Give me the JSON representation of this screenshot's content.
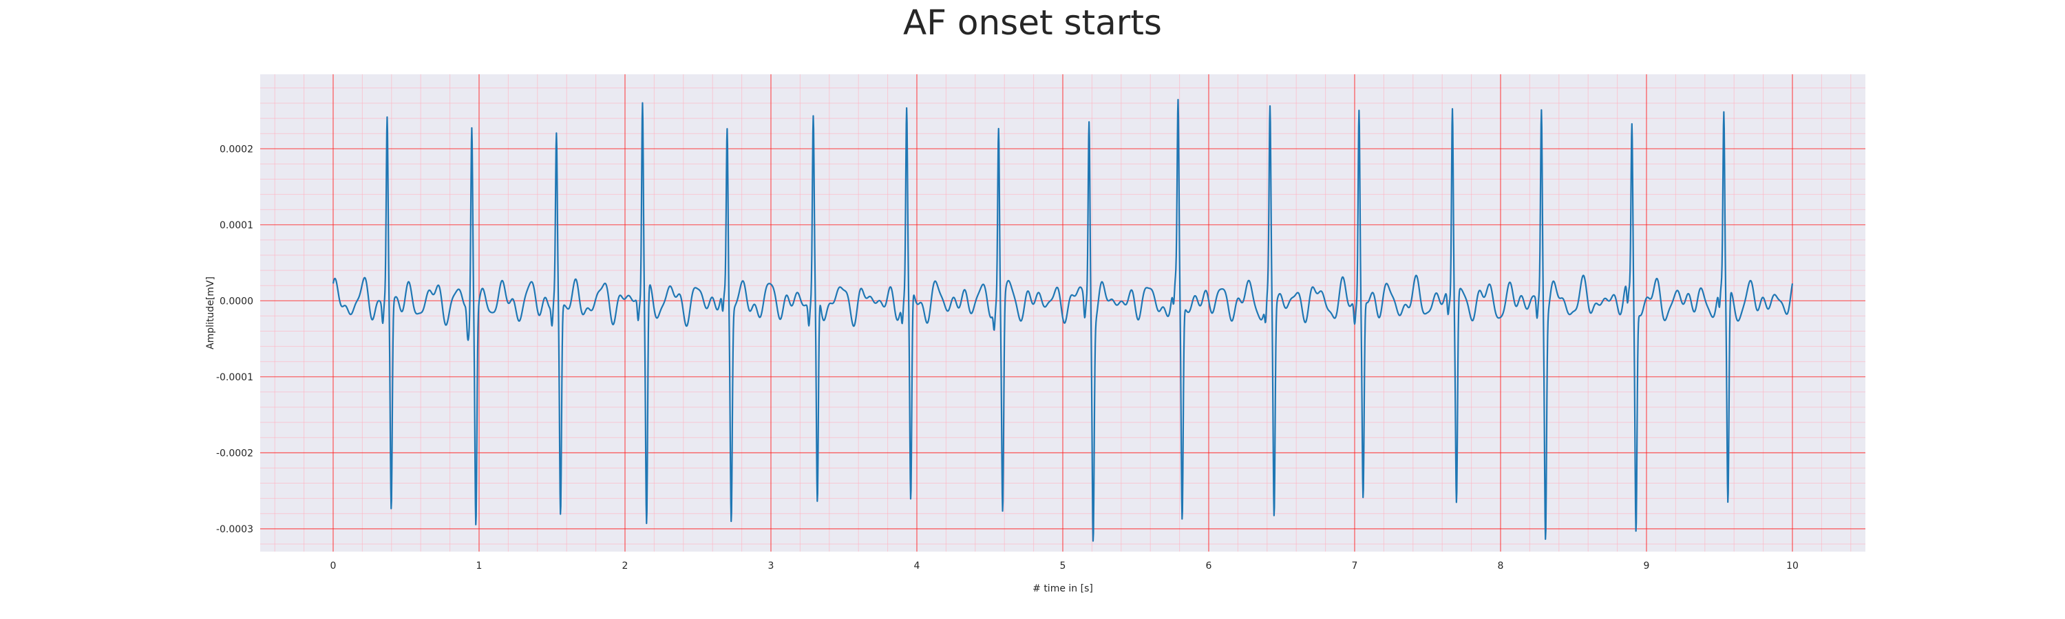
{
  "chart_data": {
    "type": "line",
    "title": "AF onset starts",
    "xlabel": "# time in [s]",
    "ylabel": "Amplitude[mV]",
    "xlim": [
      -0.5,
      10.5
    ],
    "ylim": [
      -0.00033,
      0.000298
    ],
    "x_ticks": [
      0,
      1,
      2,
      3,
      4,
      5,
      6,
      7,
      8,
      9,
      10
    ],
    "x_tick_labels": [
      "0",
      "1",
      "2",
      "3",
      "4",
      "5",
      "6",
      "7",
      "8",
      "9",
      "10"
    ],
    "y_ticks": [
      0.0002,
      0.0001,
      0.0,
      -0.0001,
      -0.0002,
      -0.0003
    ],
    "y_tick_labels": [
      "0.0002",
      "0.0001",
      "0.0000",
      "-0.0001",
      "-0.0002",
      "-0.0003"
    ],
    "grid": true,
    "minor_grid": true,
    "colors": {
      "background": "#eaeaf2",
      "major_grid": "#ff2020",
      "minor_grid": "#ffb0c0",
      "line": "#1f77b4"
    },
    "series": [
      {
        "x_start": 0,
        "x_end": 10,
        "beats": [
          {
            "t": 0.37,
            "peak": 0.000236,
            "trough": -0.000275
          },
          {
            "t": 0.95,
            "peak": 0.000224,
            "trough": -0.000282
          },
          {
            "t": 1.53,
            "peak": 0.000211,
            "trough": -0.000281
          },
          {
            "t": 2.12,
            "peak": 0.000271,
            "trough": -0.000301
          },
          {
            "t": 2.7,
            "peak": 0.000229,
            "trough": -0.000275
          },
          {
            "t": 3.29,
            "peak": 0.000233,
            "trough": -0.000287
          },
          {
            "t": 3.93,
            "peak": 0.000242,
            "trough": -0.000281
          },
          {
            "t": 4.56,
            "peak": 0.000235,
            "trough": -0.00027
          },
          {
            "t": 5.18,
            "peak": 0.000242,
            "trough": -0.000289
          },
          {
            "t": 5.79,
            "peak": 0.000243,
            "trough": -0.000285
          },
          {
            "t": 6.42,
            "peak": 0.000239,
            "trough": -0.00028
          },
          {
            "t": 7.03,
            "peak": 0.000257,
            "trough": -0.00026
          },
          {
            "t": 7.67,
            "peak": 0.000267,
            "trough": -0.000266
          },
          {
            "t": 8.28,
            "peak": 0.000253,
            "trough": -0.000291
          },
          {
            "t": 8.9,
            "peak": 0.000231,
            "trough": -0.000293
          },
          {
            "t": 9.53,
            "peak": 0.000238,
            "trough": -0.000273
          }
        ],
        "baseline_amplitude": 3e-05,
        "baseline_min_at_t": 0.93,
        "baseline_min_value": -5.4e-05
      }
    ]
  }
}
